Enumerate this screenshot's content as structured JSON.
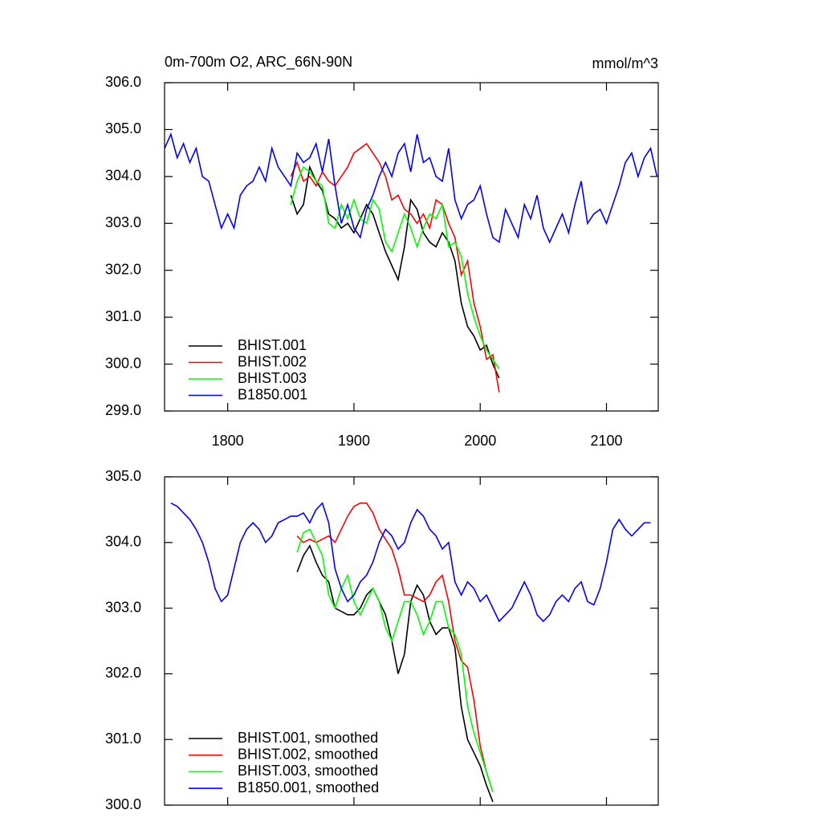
{
  "chart_data": [
    {
      "type": "line",
      "title": "0m-700m O2, ARC_66N-90N",
      "subtitle": "mmol/m^3",
      "xlim": [
        1750,
        2141
      ],
      "xticks": [
        1800,
        1900,
        2000,
        2100
      ],
      "ylim": [
        299,
        306
      ],
      "yticks": [
        {
          "value": 299,
          "label": "299.0"
        },
        {
          "value": 300,
          "label": "300.0"
        },
        {
          "value": 301,
          "label": "301.0"
        },
        {
          "value": 302,
          "label": "302.0"
        },
        {
          "value": 303,
          "label": "303.0"
        },
        {
          "value": 304,
          "label": "304.0"
        },
        {
          "value": 305,
          "label": "305.0"
        },
        {
          "value": 306,
          "label": "306.0"
        }
      ],
      "legend": "lower left",
      "series": [
        {
          "name": "BHIST.001",
          "color": "#000000",
          "x": [
            1850,
            1855,
            1860,
            1865,
            1870,
            1875,
            1880,
            1885,
            1890,
            1895,
            1900,
            1905,
            1910,
            1915,
            1920,
            1925,
            1930,
            1935,
            1940,
            1945,
            1950,
            1955,
            1960,
            1965,
            1970,
            1975,
            1980,
            1985,
            1990,
            1995,
            2000,
            2005,
            2010,
            2015
          ],
          "values": [
            303.6,
            303.2,
            303.4,
            304.2,
            303.9,
            303.7,
            303.2,
            303.1,
            302.9,
            303.0,
            302.8,
            303.1,
            303.4,
            303.2,
            302.8,
            302.4,
            302.1,
            301.8,
            302.5,
            303.5,
            303.3,
            302.8,
            302.6,
            302.5,
            302.8,
            302.6,
            302.2,
            301.3,
            300.8,
            300.6,
            300.3,
            300.4,
            300.0,
            299.7
          ]
        },
        {
          "name": "BHIST.002",
          "color": "#ff0000",
          "x": [
            1850,
            1855,
            1860,
            1865,
            1870,
            1875,
            1880,
            1885,
            1890,
            1895,
            1900,
            1905,
            1910,
            1915,
            1920,
            1925,
            1930,
            1935,
            1940,
            1945,
            1950,
            1955,
            1960,
            1965,
            1970,
            1975,
            1980,
            1985,
            1990,
            1995,
            2000,
            2005,
            2010,
            2015
          ],
          "values": [
            304.0,
            304.3,
            303.9,
            304.0,
            303.8,
            304.1,
            303.9,
            303.8,
            304.0,
            304.2,
            304.5,
            304.6,
            304.7,
            304.5,
            304.3,
            304.0,
            303.5,
            303.6,
            303.3,
            303.2,
            303.0,
            303.2,
            302.9,
            303.5,
            303.4,
            303.0,
            302.7,
            301.9,
            302.2,
            301.3,
            300.8,
            300.1,
            300.2,
            299.4
          ]
        },
        {
          "name": "BHIST.003",
          "color": "#00ff00",
          "x": [
            1850,
            1855,
            1860,
            1865,
            1870,
            1875,
            1880,
            1885,
            1890,
            1895,
            1900,
            1905,
            1910,
            1915,
            1920,
            1925,
            1930,
            1935,
            1940,
            1945,
            1950,
            1955,
            1960,
            1965,
            1970,
            1975,
            1980,
            1985,
            1990,
            1995,
            2000,
            2005,
            2010,
            2015
          ],
          "values": [
            303.4,
            303.9,
            304.2,
            304.1,
            303.9,
            303.8,
            303.0,
            302.9,
            303.4,
            303.1,
            303.5,
            303.1,
            303.0,
            303.5,
            303.3,
            302.6,
            302.4,
            302.8,
            303.2,
            302.9,
            302.5,
            302.9,
            303.2,
            303.1,
            303.4,
            302.5,
            302.6,
            302.3,
            301.5,
            301.0,
            300.6,
            300.3,
            300.1,
            299.9
          ]
        },
        {
          "name": "B1850.001",
          "color": "#0000ff",
          "x": [
            1750,
            1755,
            1760,
            1765,
            1770,
            1775,
            1780,
            1785,
            1790,
            1795,
            1800,
            1805,
            1810,
            1815,
            1820,
            1825,
            1830,
            1835,
            1840,
            1845,
            1850,
            1855,
            1860,
            1865,
            1870,
            1875,
            1880,
            1885,
            1890,
            1895,
            1900,
            1905,
            1910,
            1915,
            1920,
            1925,
            1930,
            1935,
            1940,
            1945,
            1950,
            1955,
            1960,
            1965,
            1970,
            1975,
            1980,
            1985,
            1990,
            1995,
            2000,
            2005,
            2010,
            2015,
            2020,
            2025,
            2030,
            2035,
            2040,
            2045,
            2050,
            2055,
            2060,
            2065,
            2070,
            2075,
            2080,
            2085,
            2090,
            2095,
            2100,
            2105,
            2110,
            2115,
            2120,
            2125,
            2130,
            2135,
            2140
          ],
          "values": [
            304.6,
            304.9,
            304.4,
            304.7,
            304.3,
            304.6,
            304.0,
            303.9,
            303.4,
            302.9,
            303.2,
            302.9,
            303.6,
            303.8,
            303.9,
            304.2,
            303.9,
            304.6,
            304.2,
            304.0,
            303.8,
            304.5,
            304.3,
            304.4,
            304.7,
            304.1,
            304.8,
            303.8,
            303.0,
            303.4,
            302.9,
            302.7,
            303.3,
            303.6,
            304.0,
            304.3,
            304.0,
            304.5,
            304.7,
            304.1,
            304.9,
            304.3,
            304.4,
            304.0,
            303.9,
            304.6,
            303.5,
            303.1,
            303.4,
            303.5,
            303.8,
            303.2,
            302.7,
            302.6,
            303.3,
            303.0,
            302.7,
            303.4,
            303.1,
            303.6,
            302.9,
            302.6,
            302.9,
            303.2,
            302.8,
            303.4,
            303.9,
            303.0,
            303.2,
            303.3,
            303.0,
            303.4,
            303.8,
            304.3,
            304.5,
            304.0,
            304.4,
            304.6,
            304.0
          ]
        }
      ]
    },
    {
      "type": "line",
      "xlim": [
        1750,
        2141
      ],
      "ylim": [
        300,
        305
      ],
      "yticks": [
        {
          "value": 300,
          "label": "300.0"
        },
        {
          "value": 301,
          "label": "301.0"
        },
        {
          "value": 302,
          "label": "302.0"
        },
        {
          "value": 303,
          "label": "303.0"
        },
        {
          "value": 304,
          "label": "304.0"
        },
        {
          "value": 305,
          "label": "305.0"
        }
      ],
      "legend": "lower left",
      "series": [
        {
          "name": "BHIST.001, smoothed",
          "color": "#000000",
          "x": [
            1855,
            1860,
            1865,
            1870,
            1875,
            1880,
            1885,
            1890,
            1895,
            1900,
            1905,
            1910,
            1915,
            1920,
            1925,
            1930,
            1935,
            1940,
            1945,
            1950,
            1955,
            1960,
            1965,
            1970,
            1975,
            1980,
            1985,
            1990,
            1995,
            2000,
            2005,
            2010
          ],
          "values": [
            303.55,
            303.8,
            303.95,
            303.7,
            303.5,
            303.4,
            303.0,
            302.95,
            302.9,
            302.9,
            303.0,
            303.2,
            303.3,
            303.1,
            302.9,
            302.5,
            302.0,
            302.3,
            303.1,
            303.35,
            303.2,
            302.8,
            302.6,
            302.7,
            302.7,
            302.4,
            301.5,
            301.0,
            300.8,
            300.6,
            300.3,
            300.05
          ]
        },
        {
          "name": "BHIST.002, smoothed",
          "color": "#ff0000",
          "x": [
            1855,
            1860,
            1865,
            1870,
            1875,
            1880,
            1885,
            1890,
            1895,
            1900,
            1905,
            1910,
            1915,
            1920,
            1925,
            1930,
            1935,
            1940,
            1945,
            1950,
            1955,
            1960,
            1965,
            1970,
            1975,
            1980,
            1985,
            1990,
            1995,
            2000,
            2005,
            2010
          ],
          "values": [
            304.1,
            304.0,
            304.05,
            304.0,
            304.05,
            304.1,
            304.0,
            304.2,
            304.4,
            304.55,
            304.6,
            304.6,
            304.45,
            304.2,
            304.05,
            303.9,
            303.6,
            303.2,
            303.2,
            303.15,
            303.1,
            303.2,
            303.4,
            303.5,
            303.1,
            302.5,
            302.2,
            302.1,
            301.6,
            300.9,
            300.5,
            300.2
          ]
        },
        {
          "name": "BHIST.003, smoothed",
          "color": "#00ff00",
          "x": [
            1855,
            1860,
            1865,
            1870,
            1875,
            1880,
            1885,
            1890,
            1895,
            1900,
            1905,
            1910,
            1915,
            1920,
            1925,
            1930,
            1935,
            1940,
            1945,
            1950,
            1955,
            1960,
            1965,
            1970,
            1975,
            1980,
            1985,
            1990,
            1995,
            2000,
            2005,
            2010
          ],
          "values": [
            303.85,
            304.15,
            304.2,
            304.0,
            303.8,
            303.2,
            303.0,
            303.3,
            303.5,
            303.1,
            302.9,
            303.1,
            303.3,
            303.1,
            302.7,
            302.5,
            302.8,
            303.1,
            303.1,
            302.9,
            302.6,
            302.8,
            303.1,
            303.1,
            302.7,
            302.6,
            302.3,
            301.5,
            301.1,
            300.8,
            300.5,
            300.2
          ]
        },
        {
          "name": "B1850.001, smoothed",
          "color": "#0000ff",
          "x": [
            1755,
            1760,
            1765,
            1770,
            1775,
            1780,
            1785,
            1790,
            1795,
            1800,
            1805,
            1810,
            1815,
            1820,
            1825,
            1830,
            1835,
            1840,
            1845,
            1850,
            1855,
            1860,
            1865,
            1870,
            1875,
            1880,
            1885,
            1890,
            1895,
            1900,
            1905,
            1910,
            1915,
            1920,
            1925,
            1930,
            1935,
            1940,
            1945,
            1950,
            1955,
            1960,
            1965,
            1970,
            1975,
            1980,
            1985,
            1990,
            1995,
            2000,
            2005,
            2010,
            2015,
            2020,
            2025,
            2030,
            2035,
            2040,
            2045,
            2050,
            2055,
            2060,
            2065,
            2070,
            2075,
            2080,
            2085,
            2090,
            2095,
            2100,
            2105,
            2110,
            2115,
            2120,
            2125,
            2130,
            2135
          ],
          "values": [
            304.6,
            304.55,
            304.45,
            304.35,
            304.2,
            304.0,
            303.7,
            303.3,
            303.1,
            303.2,
            303.6,
            304.0,
            304.2,
            304.3,
            304.2,
            304.0,
            304.1,
            304.3,
            304.35,
            304.4,
            304.4,
            304.45,
            304.3,
            304.5,
            304.6,
            304.3,
            303.6,
            303.3,
            303.1,
            303.2,
            303.4,
            303.5,
            303.7,
            304.0,
            304.2,
            304.1,
            303.9,
            304.0,
            304.3,
            304.5,
            304.4,
            304.2,
            304.1,
            303.9,
            304.0,
            303.4,
            303.2,
            303.4,
            303.3,
            303.1,
            303.2,
            303.0,
            302.8,
            302.9,
            303.0,
            303.2,
            303.4,
            303.2,
            302.9,
            302.8,
            302.9,
            303.1,
            303.2,
            303.1,
            303.3,
            303.4,
            303.1,
            303.05,
            303.3,
            303.7,
            304.2,
            304.35,
            304.2,
            304.1,
            304.2,
            304.3,
            304.3
          ]
        }
      ]
    }
  ]
}
